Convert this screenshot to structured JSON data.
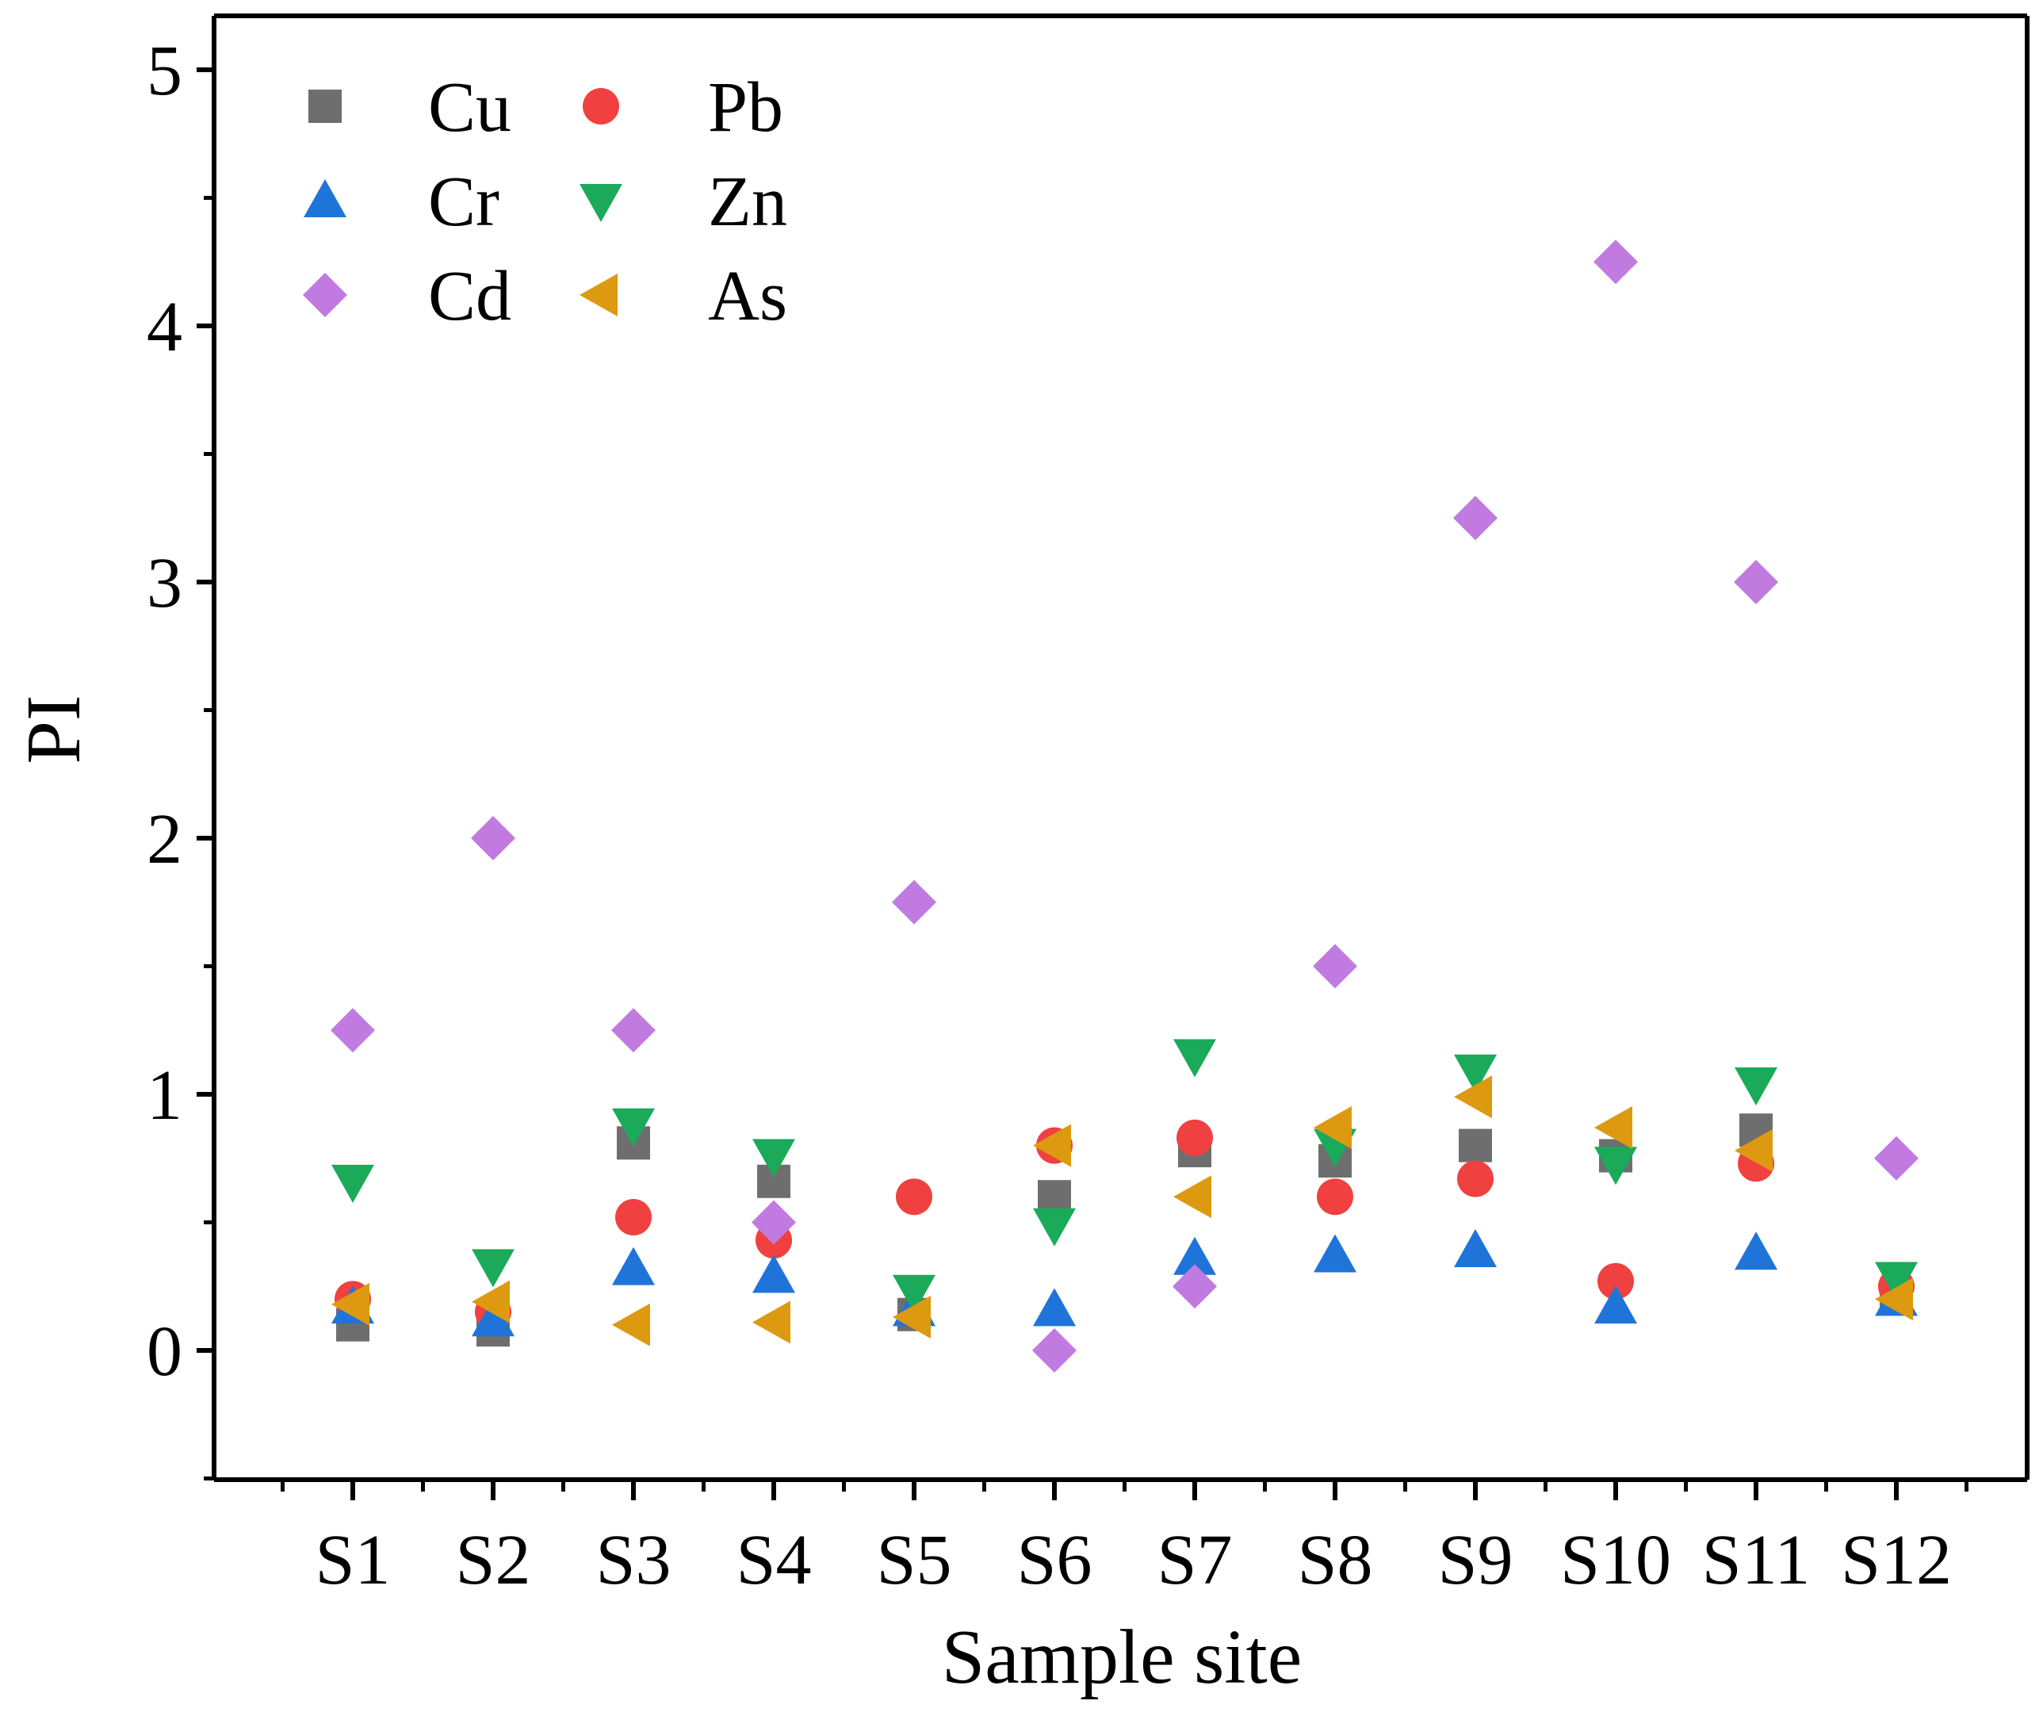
{
  "chart_data": {
    "type": "scatter",
    "title": "",
    "xlabel": "Sample site",
    "ylabel": "PI",
    "categories": [
      "S1",
      "S2",
      "S3",
      "S4",
      "S5",
      "S6",
      "S7",
      "S8",
      "S9",
      "S10",
      "S11",
      "S12"
    ],
    "ylim": [
      -0.5,
      5.2
    ],
    "yticks": [
      0,
      1,
      2,
      3,
      4,
      5
    ],
    "yticklabels": [
      "0",
      "1",
      "2",
      "3",
      "4",
      "5"
    ],
    "grid": false,
    "legend_position": "top-left",
    "series": [
      {
        "name": "Cu",
        "marker": "square",
        "color": "#6e6e6e",
        "values": [
          0.1,
          0.08,
          0.81,
          0.66,
          0.14,
          0.6,
          0.78,
          0.74,
          0.8,
          0.76,
          0.86,
          0.21
        ]
      },
      {
        "name": "Pb",
        "marker": "circle",
        "color": "#f04040",
        "values": [
          0.2,
          0.15,
          0.52,
          0.43,
          0.6,
          0.8,
          0.83,
          0.6,
          0.67,
          0.27,
          0.73,
          0.25
        ]
      },
      {
        "name": "Cr",
        "marker": "triangle-up",
        "color": "#1f74d9",
        "values": [
          0.17,
          0.12,
          0.32,
          0.29,
          0.16,
          0.16,
          0.36,
          0.37,
          0.39,
          0.17,
          0.38,
          0.2
        ]
      },
      {
        "name": "Zn",
        "marker": "triangle-down",
        "color": "#1aaa5a",
        "values": [
          0.66,
          0.33,
          0.88,
          0.76,
          0.23,
          0.49,
          1.15,
          0.8,
          1.09,
          0.73,
          1.04,
          0.28
        ]
      },
      {
        "name": "Cd",
        "marker": "diamond",
        "color": "#c17be0",
        "values": [
          1.25,
          2.0,
          1.25,
          0.5,
          1.75,
          0.0,
          0.25,
          1.5,
          3.25,
          4.25,
          3.0,
          0.75
        ]
      },
      {
        "name": "As",
        "marker": "triangle-left",
        "color": "#dd9a10",
        "values": [
          0.18,
          0.19,
          0.1,
          0.11,
          0.13,
          0.8,
          0.6,
          0.87,
          0.99,
          0.87,
          0.78,
          0.2
        ]
      }
    ]
  }
}
